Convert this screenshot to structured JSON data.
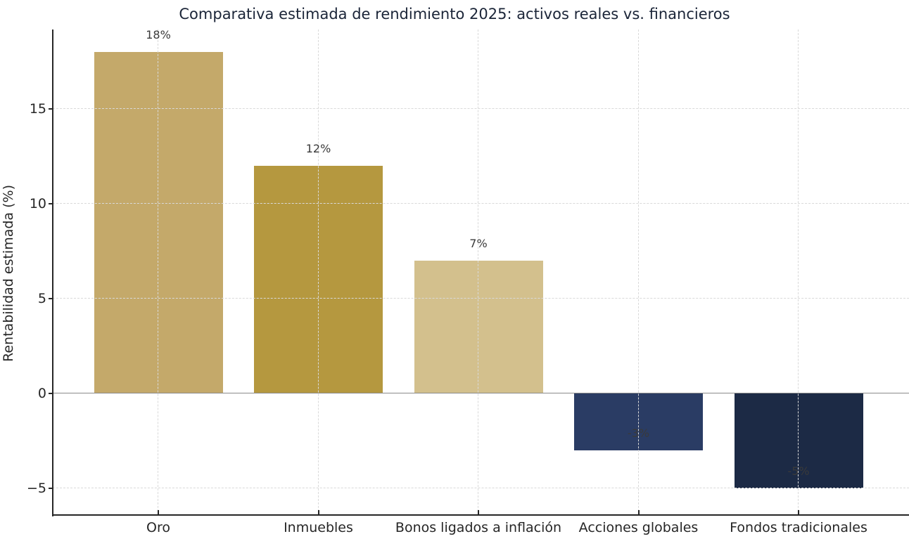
{
  "chart_data": {
    "type": "bar",
    "title": "Comparativa estimada de rendimiento 2025: activos reales vs. financieros",
    "xlabel": "",
    "ylabel": "Rentabilidad estimada (%)",
    "categories": [
      "Oro",
      "Inmuebles",
      "Bonos ligados a inflación",
      "Acciones globales",
      "Fondos tradicionales"
    ],
    "values": [
      18,
      12,
      7,
      -3,
      -5
    ],
    "value_labels": [
      "18%",
      "12%",
      "7%",
      "-3%",
      "-5%"
    ],
    "bar_colors": [
      "#C4A96A",
      "#B5983F",
      "#D3C08D",
      "#2A3C64",
      "#1C2A45"
    ],
    "yticks": [
      15,
      10,
      5,
      0,
      -5
    ],
    "ytick_labels": [
      "15",
      "10",
      "5",
      "0",
      "−5"
    ],
    "ylim": [
      -6.4,
      19.2
    ],
    "grid": "dashed, horizontal and vertical, drawn above bars",
    "legend_position": "none",
    "colors": {
      "title": "#1B2538",
      "tick_text": "#262626",
      "value_label_text": "#3A3A3A",
      "gridline": "#D9D9D9",
      "zero_line": "#8A8A8A",
      "spine": "#262626",
      "background": "#FFFFFF"
    }
  }
}
